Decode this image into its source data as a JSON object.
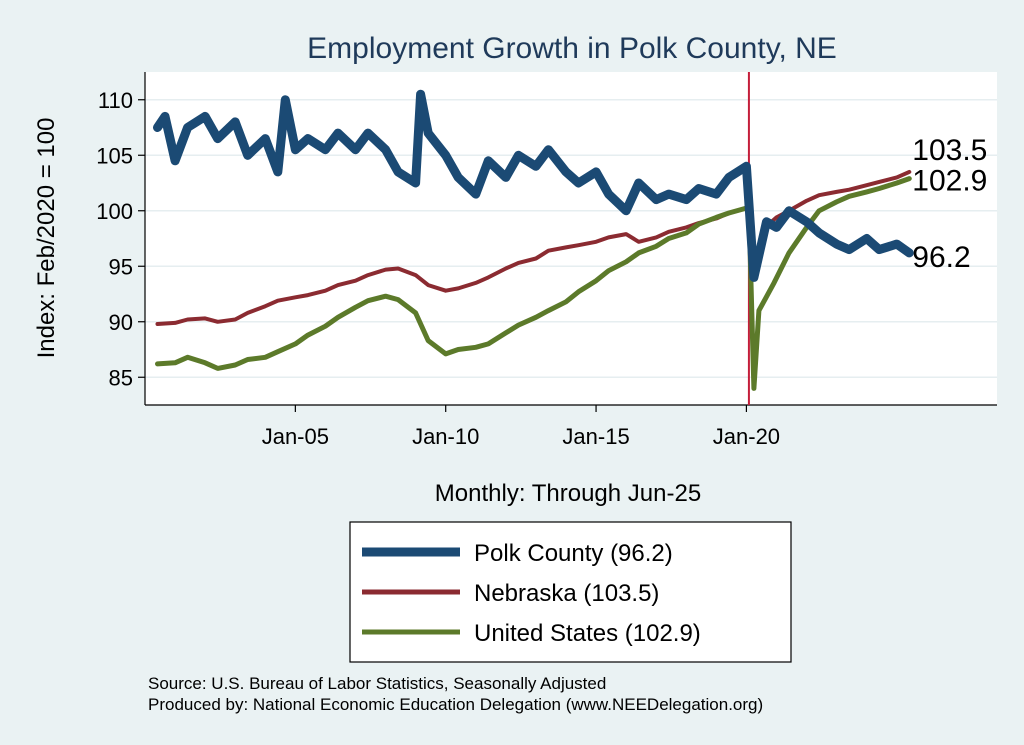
{
  "chart_data": {
    "type": "line",
    "title": "Employment Growth in Polk  County, NE",
    "ylabel": "Index: Feb/2020 = 100",
    "xlabel": "Monthly: Through Jun-25",
    "ylim": [
      82.5,
      112.5
    ],
    "yticks": [
      85,
      90,
      95,
      100,
      105,
      110
    ],
    "xlim": [
      "2000-01",
      "2028-05"
    ],
    "xticks": [
      {
        "date": "2005-01",
        "label": "Jan-05"
      },
      {
        "date": "2010-01",
        "label": "Jan-10"
      },
      {
        "date": "2015-01",
        "label": "Jan-15"
      },
      {
        "date": "2020-01",
        "label": "Jan-20"
      }
    ],
    "reference_line": {
      "date": "2020-02",
      "color": "#c41e3a"
    },
    "grid": true,
    "legend_position": "bottom",
    "series": [
      {
        "name": "Polk  County (96.2)",
        "color": "#1b4a74",
        "end_label": "96.2",
        "points": [
          [
            "2000-06",
            107.5
          ],
          [
            "2000-09",
            108.5
          ],
          [
            "2001-01",
            104.5
          ],
          [
            "2001-06",
            107.5
          ],
          [
            "2002-01",
            108.5
          ],
          [
            "2002-06",
            106.5
          ],
          [
            "2003-01",
            108.0
          ],
          [
            "2003-06",
            105.0
          ],
          [
            "2004-01",
            106.5
          ],
          [
            "2004-06",
            103.5
          ],
          [
            "2004-09",
            110.0
          ],
          [
            "2005-01",
            105.5
          ],
          [
            "2005-06",
            106.5
          ],
          [
            "2006-01",
            105.5
          ],
          [
            "2006-06",
            107.0
          ],
          [
            "2007-01",
            105.5
          ],
          [
            "2007-06",
            107.0
          ],
          [
            "2008-01",
            105.5
          ],
          [
            "2008-06",
            103.5
          ],
          [
            "2009-01",
            102.5
          ],
          [
            "2009-03",
            110.5
          ],
          [
            "2009-06",
            107.0
          ],
          [
            "2010-01",
            105.0
          ],
          [
            "2010-06",
            103.0
          ],
          [
            "2011-01",
            101.5
          ],
          [
            "2011-06",
            104.5
          ],
          [
            "2012-01",
            103.0
          ],
          [
            "2012-06",
            105.0
          ],
          [
            "2013-01",
            104.0
          ],
          [
            "2013-06",
            105.5
          ],
          [
            "2014-01",
            103.5
          ],
          [
            "2014-06",
            102.5
          ],
          [
            "2015-01",
            103.5
          ],
          [
            "2015-06",
            101.5
          ],
          [
            "2016-01",
            100.0
          ],
          [
            "2016-06",
            102.5
          ],
          [
            "2017-01",
            101.0
          ],
          [
            "2017-06",
            101.5
          ],
          [
            "2018-01",
            101.0
          ],
          [
            "2018-06",
            102.0
          ],
          [
            "2019-01",
            101.5
          ],
          [
            "2019-06",
            103.0
          ],
          [
            "2020-01",
            104.0
          ],
          [
            "2020-04",
            94.0
          ],
          [
            "2020-09",
            99.0
          ],
          [
            "2021-01",
            98.5
          ],
          [
            "2021-06",
            100.0
          ],
          [
            "2022-01",
            99.0
          ],
          [
            "2022-06",
            98.0
          ],
          [
            "2023-01",
            97.0
          ],
          [
            "2023-06",
            96.5
          ],
          [
            "2024-01",
            97.5
          ],
          [
            "2024-06",
            96.5
          ],
          [
            "2025-01",
            97.0
          ],
          [
            "2025-06",
            96.2
          ]
        ]
      },
      {
        "name": "Nebraska (103.5)",
        "color": "#8b2b31",
        "end_label": "103.5",
        "points": [
          [
            "2000-06",
            89.8
          ],
          [
            "2001-01",
            89.9
          ],
          [
            "2001-06",
            90.2
          ],
          [
            "2002-01",
            90.3
          ],
          [
            "2002-06",
            90.0
          ],
          [
            "2003-01",
            90.2
          ],
          [
            "2003-06",
            90.8
          ],
          [
            "2004-01",
            91.4
          ],
          [
            "2004-06",
            91.9
          ],
          [
            "2005-01",
            92.2
          ],
          [
            "2005-06",
            92.4
          ],
          [
            "2006-01",
            92.8
          ],
          [
            "2006-06",
            93.3
          ],
          [
            "2007-01",
            93.7
          ],
          [
            "2007-06",
            94.2
          ],
          [
            "2008-01",
            94.7
          ],
          [
            "2008-06",
            94.8
          ],
          [
            "2009-01",
            94.2
          ],
          [
            "2009-06",
            93.3
          ],
          [
            "2010-01",
            92.8
          ],
          [
            "2010-06",
            93.0
          ],
          [
            "2011-01",
            93.5
          ],
          [
            "2011-06",
            94.0
          ],
          [
            "2012-01",
            94.8
          ],
          [
            "2012-06",
            95.3
          ],
          [
            "2013-01",
            95.7
          ],
          [
            "2013-06",
            96.4
          ],
          [
            "2014-01",
            96.7
          ],
          [
            "2014-06",
            96.9
          ],
          [
            "2015-01",
            97.2
          ],
          [
            "2015-06",
            97.6
          ],
          [
            "2016-01",
            97.9
          ],
          [
            "2016-06",
            97.2
          ],
          [
            "2017-01",
            97.6
          ],
          [
            "2017-06",
            98.1
          ],
          [
            "2018-01",
            98.5
          ],
          [
            "2018-06",
            98.9
          ],
          [
            "2019-01",
            99.3
          ],
          [
            "2019-06",
            99.8
          ],
          [
            "2020-01",
            100.2
          ],
          [
            "2020-02",
            100.2
          ],
          [
            "2020-04",
            94.5
          ],
          [
            "2020-08",
            98.4
          ],
          [
            "2021-01",
            99.4
          ],
          [
            "2021-06",
            100.0
          ],
          [
            "2022-01",
            100.9
          ],
          [
            "2022-06",
            101.4
          ],
          [
            "2023-01",
            101.7
          ],
          [
            "2023-06",
            101.9
          ],
          [
            "2024-01",
            102.3
          ],
          [
            "2024-06",
            102.6
          ],
          [
            "2025-01",
            103.0
          ],
          [
            "2025-06",
            103.5
          ]
        ]
      },
      {
        "name": "United States (102.9)",
        "color": "#5c7a2a",
        "end_label": "102.9",
        "points": [
          [
            "2000-06",
            86.2
          ],
          [
            "2001-01",
            86.3
          ],
          [
            "2001-06",
            86.8
          ],
          [
            "2002-01",
            86.3
          ],
          [
            "2002-06",
            85.8
          ],
          [
            "2003-01",
            86.1
          ],
          [
            "2003-06",
            86.6
          ],
          [
            "2004-01",
            86.8
          ],
          [
            "2004-06",
            87.3
          ],
          [
            "2005-01",
            88.0
          ],
          [
            "2005-06",
            88.8
          ],
          [
            "2006-01",
            89.6
          ],
          [
            "2006-06",
            90.4
          ],
          [
            "2007-01",
            91.3
          ],
          [
            "2007-06",
            91.9
          ],
          [
            "2008-01",
            92.3
          ],
          [
            "2008-06",
            92.0
          ],
          [
            "2009-01",
            90.8
          ],
          [
            "2009-06",
            88.3
          ],
          [
            "2010-01",
            87.1
          ],
          [
            "2010-06",
            87.5
          ],
          [
            "2011-01",
            87.7
          ],
          [
            "2011-06",
            88.0
          ],
          [
            "2012-01",
            89.0
          ],
          [
            "2012-06",
            89.7
          ],
          [
            "2013-01",
            90.4
          ],
          [
            "2013-06",
            91.0
          ],
          [
            "2014-01",
            91.8
          ],
          [
            "2014-06",
            92.7
          ],
          [
            "2015-01",
            93.7
          ],
          [
            "2015-06",
            94.6
          ],
          [
            "2016-01",
            95.4
          ],
          [
            "2016-06",
            96.2
          ],
          [
            "2017-01",
            96.8
          ],
          [
            "2017-06",
            97.5
          ],
          [
            "2018-01",
            98.0
          ],
          [
            "2018-06",
            98.8
          ],
          [
            "2019-01",
            99.4
          ],
          [
            "2019-06",
            99.8
          ],
          [
            "2020-02",
            100.3
          ],
          [
            "2020-04",
            84.0
          ],
          [
            "2020-06",
            91.0
          ],
          [
            "2020-12",
            93.5
          ],
          [
            "2021-06",
            96.2
          ],
          [
            "2022-01",
            98.5
          ],
          [
            "2022-06",
            100.0
          ],
          [
            "2023-01",
            100.8
          ],
          [
            "2023-06",
            101.3
          ],
          [
            "2024-01",
            101.7
          ],
          [
            "2024-06",
            102.0
          ],
          [
            "2025-01",
            102.5
          ],
          [
            "2025-06",
            102.9
          ]
        ]
      }
    ],
    "source_note": "Source: U.S. Bureau of Labor Statistics, Seasonally Adjusted",
    "producer_note": "Produced by: National Economic Education Delegation (www.NEEDelegation.org)"
  }
}
